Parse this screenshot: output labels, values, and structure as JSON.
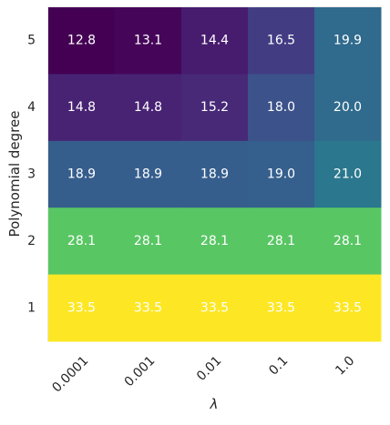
{
  "chart_data": {
    "type": "heatmap",
    "xlabel": "λ",
    "ylabel": "Polynomial degree",
    "x_categories": [
      "0.0001",
      "0.001",
      "0.01",
      "0.1",
      "1.0"
    ],
    "y_categories": [
      "5",
      "4",
      "3",
      "2",
      "1"
    ],
    "values": [
      [
        12.8,
        13.1,
        14.4,
        16.5,
        19.9
      ],
      [
        14.8,
        14.8,
        15.2,
        18.0,
        20.0
      ],
      [
        18.9,
        18.9,
        18.9,
        19.0,
        21.0
      ],
      [
        28.1,
        28.1,
        28.1,
        28.1,
        28.1
      ],
      [
        33.5,
        33.5,
        33.5,
        33.5,
        33.5
      ]
    ],
    "value_labels": [
      [
        "12.8",
        "13.1",
        "14.4",
        "16.5",
        "19.9"
      ],
      [
        "14.8",
        "14.8",
        "15.2",
        "18.0",
        "20.0"
      ],
      [
        "18.9",
        "18.9",
        "18.9",
        "19.0",
        "21.0"
      ],
      [
        "28.1",
        "28.1",
        "28.1",
        "28.1",
        "28.1"
      ],
      [
        "33.5",
        "33.5",
        "33.5",
        "33.5",
        "33.5"
      ]
    ],
    "colormap": "viridis",
    "color_range": [
      12.8,
      33.5
    ],
    "cell_text_color": "#ffffff",
    "x_tick_rotation_deg": 45,
    "grid": false,
    "colorbar": false
  }
}
